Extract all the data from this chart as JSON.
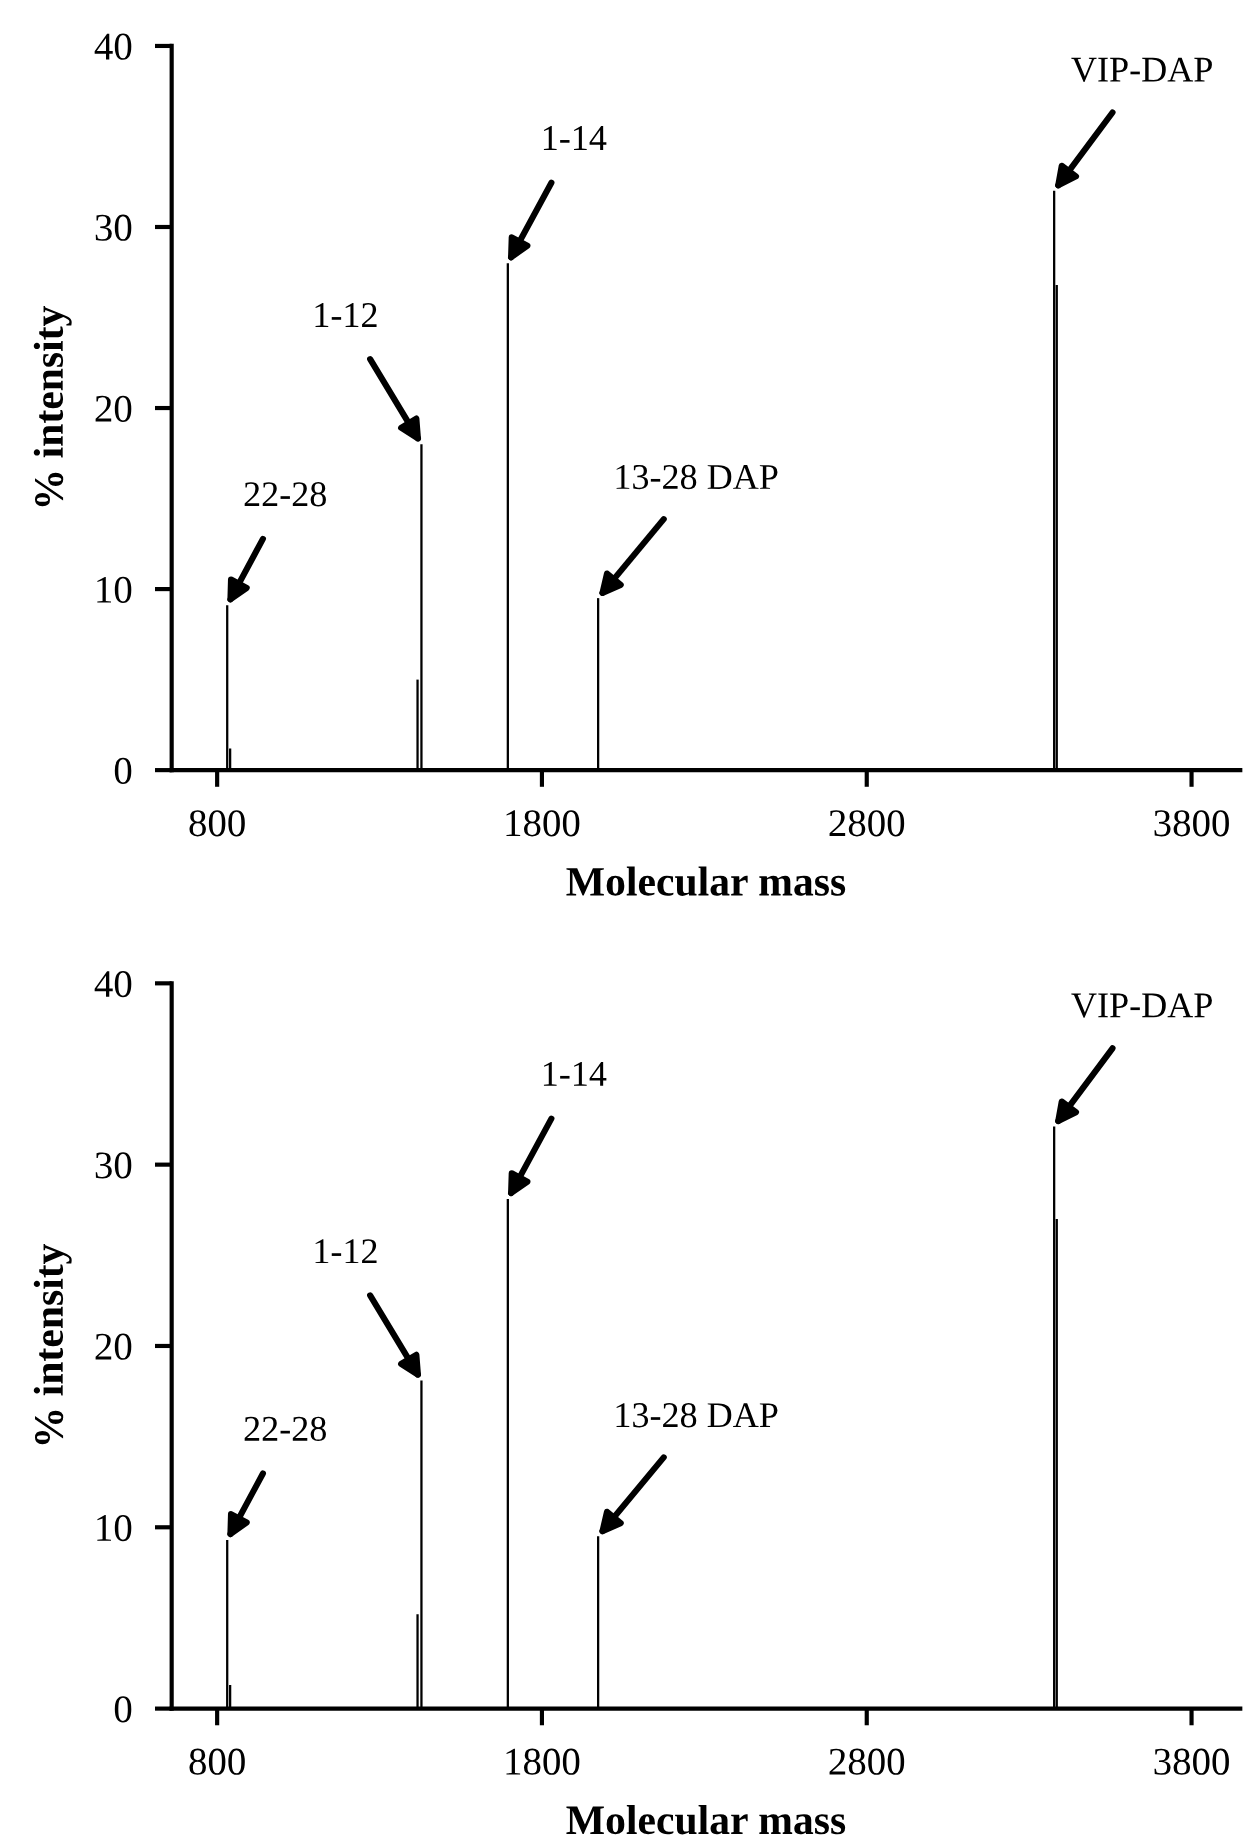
{
  "chart_data": [
    {
      "type": "bar",
      "xlabel": "Molecular mass",
      "ylabel": "% intensity",
      "color": "#000000",
      "grid": false,
      "x": [
        831,
        840,
        1417,
        1429,
        1695,
        1973,
        3377,
        3385
      ],
      "values": [
        9.1,
        1.2,
        5.0,
        18.0,
        28.0,
        9.5,
        32.0,
        26.8
      ],
      "xlim": [
        660,
        3950
      ],
      "xticks": [
        800,
        1800,
        2800,
        3800
      ],
      "ylim": [
        0,
        40
      ],
      "yticks": [
        0,
        10,
        20,
        30,
        40
      ],
      "annotations": [
        {
          "text": "22-28",
          "x": 831,
          "y": 9.1
        },
        {
          "text": "1-12",
          "x": 1429,
          "y": 18.0
        },
        {
          "text": "1-14",
          "x": 1695,
          "y": 28.0
        },
        {
          "text": "13-28 DAP",
          "x": 1973,
          "y": 9.5
        },
        {
          "text": "VIP-DAP",
          "x": 3377,
          "y": 32.0
        }
      ]
    },
    {
      "type": "bar",
      "xlabel": "Molecular mass",
      "ylabel": "% intensity",
      "color": "#000000",
      "grid": false,
      "x": [
        831,
        840,
        1417,
        1429,
        1695,
        1973,
        3377,
        3385
      ],
      "values": [
        9.3,
        1.3,
        5.2,
        18.1,
        28.1,
        9.5,
        32.1,
        27.0
      ],
      "xlim": [
        660,
        3950
      ],
      "xticks": [
        800,
        1800,
        2800,
        3800
      ],
      "ylim": [
        0,
        40
      ],
      "yticks": [
        0,
        10,
        20,
        30,
        40
      ],
      "annotations": [
        {
          "text": "22-28",
          "x": 831,
          "y": 9.3
        },
        {
          "text": "1-12",
          "x": 1429,
          "y": 18.1
        },
        {
          "text": "1-14",
          "x": 1695,
          "y": 28.1
        },
        {
          "text": "13-28 DAP",
          "x": 1973,
          "y": 9.5
        },
        {
          "text": "VIP-DAP",
          "x": 3377,
          "y": 32.1
        }
      ]
    }
  ]
}
